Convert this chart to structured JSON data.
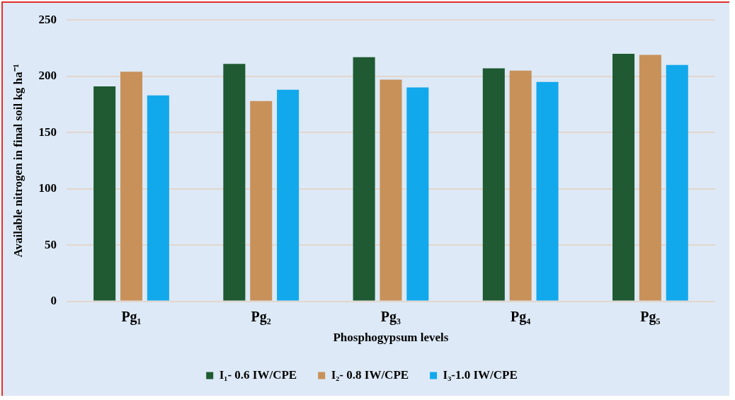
{
  "chart_data": {
    "type": "bar",
    "xlabel": "Phosphogypsum levels",
    "ylabel": "Available nitrogen in final soil kg ha⁻¹",
    "categories": [
      "Pg₁",
      "Pg₂",
      "Pg₃",
      "Pg₄",
      "Pg₅"
    ],
    "series": [
      {
        "name": "I₁- 0.6 IW/CPE",
        "color": "#1f5a32",
        "values": [
          191,
          211,
          217,
          207,
          220
        ]
      },
      {
        "name": "I₂- 0.8 IW/CPE",
        "color": "#c8915a",
        "values": [
          204,
          178,
          197,
          205,
          219
        ]
      },
      {
        "name": "I₃-1.0 IW/CPE",
        "color": "#12a8ec",
        "values": [
          183,
          188,
          190,
          195,
          210
        ]
      }
    ],
    "ylim": [
      0,
      250
    ],
    "yticks": [
      0,
      50,
      100,
      150,
      200,
      250
    ],
    "grid": "y",
    "legend": "bottom"
  }
}
